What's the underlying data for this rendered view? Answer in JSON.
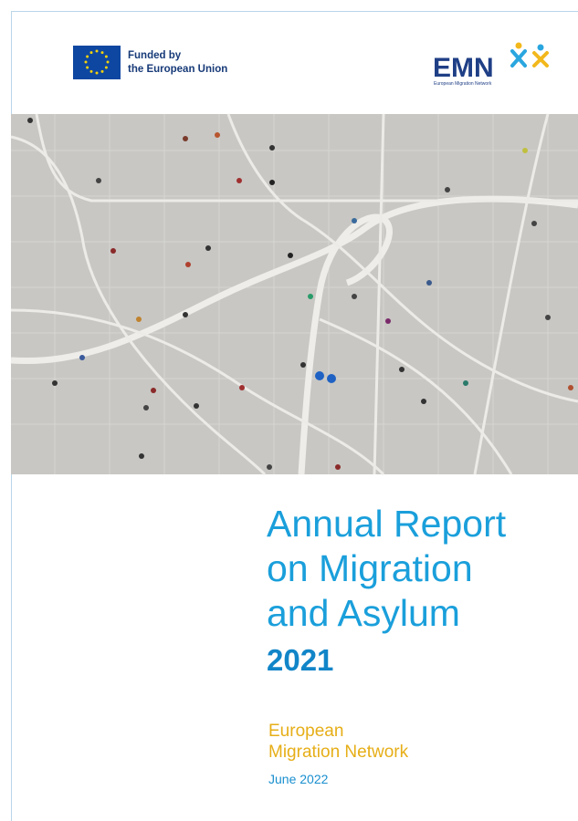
{
  "header": {
    "funding": [
      "Funded by",
      "the European Union"
    ],
    "logo": {
      "acronym": "EMN",
      "name": "European Migration Network"
    }
  },
  "title": {
    "lines": [
      "Annual Report",
      "on Migration",
      "and Asylum"
    ],
    "year": "2021"
  },
  "publisher": {
    "lines": [
      "European",
      "Migration Network"
    ]
  },
  "date": "June 2022"
}
